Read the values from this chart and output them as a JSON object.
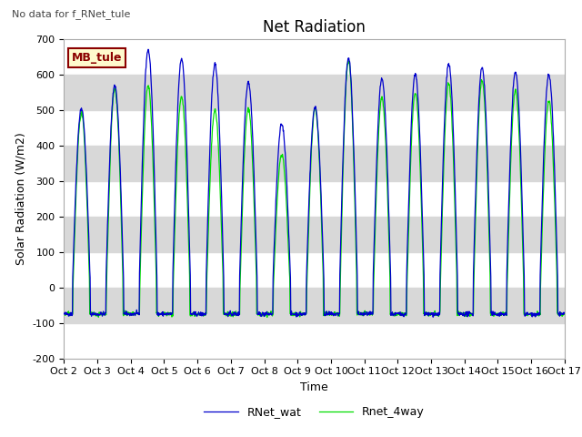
{
  "title": "Net Radiation",
  "xlabel": "Time",
  "ylabel": "Solar Radiation (W/m2)",
  "ylim": [
    -200,
    700
  ],
  "xlim": [
    0,
    15
  ],
  "top_left_text": "No data for f_RNet_tule",
  "mb_label": "MB_tule",
  "yticks": [
    -200,
    -100,
    0,
    100,
    200,
    300,
    400,
    500,
    600,
    700
  ],
  "xtick_labels": [
    "Oct 2",
    "Oct 3",
    "Oct 4",
    "Oct 5",
    "Oct 6",
    "Oct 7",
    "Oct 8",
    "Oct 9",
    "Oct 10",
    "Oct 11",
    "Oct 12",
    "Oct 13",
    "Oct 14",
    "Oct 15",
    "Oct 16",
    "Oct 17"
  ],
  "line1_color": "#0000cc",
  "line2_color": "#00dd00",
  "line1_label": "RNet_wat",
  "line2_label": "Rnet_4way",
  "band_color": "#d8d8d8",
  "bg_color": "#ffffff",
  "title_fontsize": 12,
  "axis_fontsize": 9,
  "tick_fontsize": 8,
  "days": 15,
  "points_per_day": 96,
  "day_peaks_blue": [
    505,
    570,
    670,
    645,
    630,
    580,
    460,
    510,
    645,
    587,
    600,
    630,
    620,
    607,
    600
  ],
  "day_peaks_green": [
    490,
    560,
    570,
    540,
    500,
    505,
    375,
    505,
    640,
    535,
    550,
    575,
    585,
    555,
    525
  ],
  "night_base": -75
}
